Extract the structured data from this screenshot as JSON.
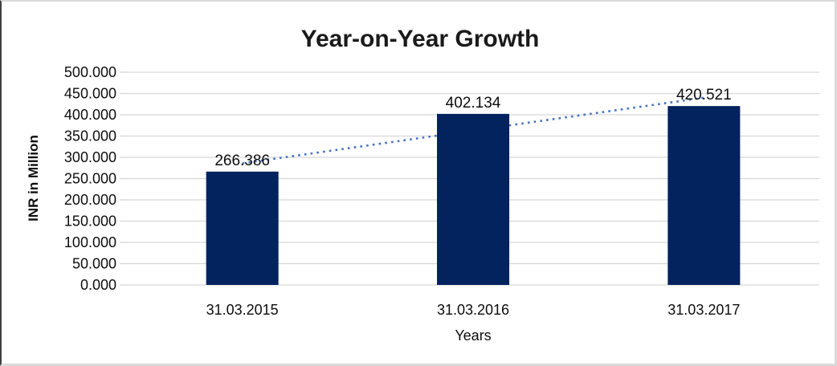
{
  "chart_data": {
    "type": "bar",
    "title": "Year-on-Year Growth",
    "categories": [
      "31.03.2015",
      "31.03.2016",
      "31.03.2017"
    ],
    "series": [
      {
        "name": "INR in Million",
        "values": [
          266.386,
          402.134,
          420.521
        ]
      }
    ],
    "data_labels": [
      "266.386",
      "402.134",
      "420.521"
    ],
    "xlabel": "Years",
    "ylabel": "INR in Million",
    "ylim": [
      0,
      500
    ],
    "ytick_step": 50,
    "ytick_labels": [
      "0.000",
      "50.000",
      "100.000",
      "150.000",
      "200.000",
      "250.000",
      "300.000",
      "350.000",
      "400.000",
      "450.000",
      "500.000"
    ],
    "grid": true,
    "legend": "none",
    "bar_color": "#03235F",
    "gridline_color": "#D6D6D6",
    "text_color": "#0D0D0D",
    "trendline": {
      "type": "linear",
      "style": "dotted",
      "color": "#4472C4"
    }
  }
}
